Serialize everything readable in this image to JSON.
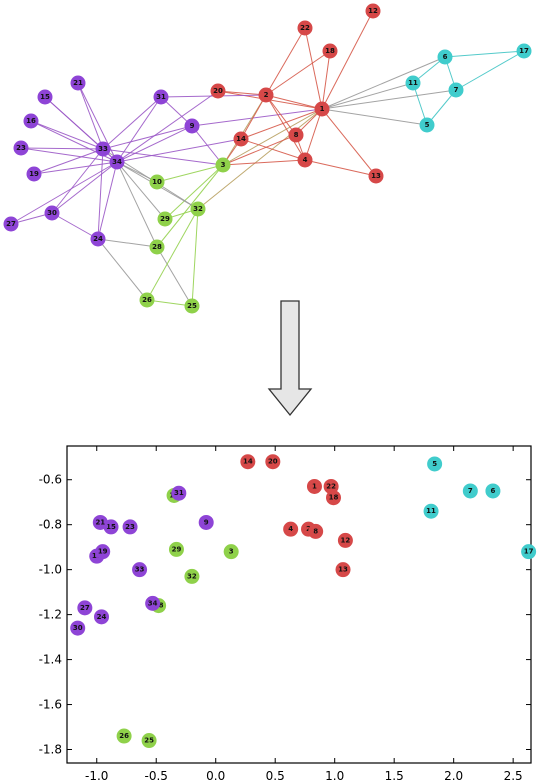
{
  "colors": {
    "purple": "#8e44d6",
    "red": "#d64848",
    "cyan": "#40cccc",
    "green": "#8fd14a",
    "gray_edge": "#999999",
    "purple_edge": "#9b59c6",
    "red_edge": "#d65a4a",
    "cyan_edge": "#40c4c4",
    "green_edge": "#95d150",
    "olive_edge": "#b8a060"
  },
  "graph": {
    "nodes": [
      {
        "id": "1",
        "community": "red"
      },
      {
        "id": "2",
        "community": "red"
      },
      {
        "id": "3",
        "community": "green"
      },
      {
        "id": "4",
        "community": "red"
      },
      {
        "id": "5",
        "community": "cyan"
      },
      {
        "id": "6",
        "community": "cyan"
      },
      {
        "id": "7",
        "community": "cyan"
      },
      {
        "id": "8",
        "community": "red"
      },
      {
        "id": "9",
        "community": "purple"
      },
      {
        "id": "10",
        "community": "green"
      },
      {
        "id": "11",
        "community": "cyan"
      },
      {
        "id": "12",
        "community": "red"
      },
      {
        "id": "13",
        "community": "red"
      },
      {
        "id": "14",
        "community": "red"
      },
      {
        "id": "15",
        "community": "purple"
      },
      {
        "id": "16",
        "community": "purple"
      },
      {
        "id": "17",
        "community": "cyan"
      },
      {
        "id": "18",
        "community": "red"
      },
      {
        "id": "19",
        "community": "purple"
      },
      {
        "id": "20",
        "community": "red"
      },
      {
        "id": "21",
        "community": "purple"
      },
      {
        "id": "22",
        "community": "red"
      },
      {
        "id": "23",
        "community": "purple"
      },
      {
        "id": "24",
        "community": "purple"
      },
      {
        "id": "25",
        "community": "green"
      },
      {
        "id": "26",
        "community": "green"
      },
      {
        "id": "27",
        "community": "purple"
      },
      {
        "id": "28",
        "community": "green"
      },
      {
        "id": "29",
        "community": "green"
      },
      {
        "id": "30",
        "community": "purple"
      },
      {
        "id": "31",
        "community": "purple"
      },
      {
        "id": "32",
        "community": "green"
      },
      {
        "id": "33",
        "community": "purple"
      },
      {
        "id": "34",
        "community": "purple"
      }
    ],
    "edges": [
      [
        "1",
        "2",
        "red"
      ],
      [
        "1",
        "3",
        "olive"
      ],
      [
        "1",
        "4",
        "red"
      ],
      [
        "1",
        "5",
        "gray"
      ],
      [
        "1",
        "6",
        "gray"
      ],
      [
        "1",
        "7",
        "gray"
      ],
      [
        "1",
        "8",
        "red"
      ],
      [
        "1",
        "9",
        "purple"
      ],
      [
        "1",
        "11",
        "gray"
      ],
      [
        "1",
        "12",
        "red"
      ],
      [
        "1",
        "13",
        "red"
      ],
      [
        "1",
        "14",
        "red"
      ],
      [
        "1",
        "18",
        "red"
      ],
      [
        "1",
        "20",
        "red"
      ],
      [
        "1",
        "22",
        "red"
      ],
      [
        "1",
        "32",
        "olive"
      ],
      [
        "2",
        "3",
        "olive"
      ],
      [
        "2",
        "4",
        "red"
      ],
      [
        "2",
        "8",
        "red"
      ],
      [
        "2",
        "14",
        "red"
      ],
      [
        "2",
        "18",
        "red"
      ],
      [
        "2",
        "20",
        "red"
      ],
      [
        "2",
        "22",
        "red"
      ],
      [
        "2",
        "31",
        "purple"
      ],
      [
        "3",
        "4",
        "red"
      ],
      [
        "3",
        "8",
        "red"
      ],
      [
        "3",
        "9",
        "purple"
      ],
      [
        "3",
        "10",
        "green"
      ],
      [
        "3",
        "14",
        "red"
      ],
      [
        "3",
        "28",
        "green"
      ],
      [
        "3",
        "29",
        "green"
      ],
      [
        "3",
        "33",
        "purple"
      ],
      [
        "4",
        "8",
        "red"
      ],
      [
        "4",
        "13",
        "red"
      ],
      [
        "4",
        "14",
        "red"
      ],
      [
        "5",
        "7",
        "cyan"
      ],
      [
        "5",
        "11",
        "cyan"
      ],
      [
        "6",
        "7",
        "cyan"
      ],
      [
        "6",
        "11",
        "cyan"
      ],
      [
        "6",
        "17",
        "cyan"
      ],
      [
        "7",
        "17",
        "cyan"
      ],
      [
        "9",
        "31",
        "purple"
      ],
      [
        "9",
        "33",
        "purple"
      ],
      [
        "9",
        "34",
        "purple"
      ],
      [
        "10",
        "34",
        "gray"
      ],
      [
        "14",
        "34",
        "purple"
      ],
      [
        "15",
        "33",
        "purple"
      ],
      [
        "15",
        "34",
        "purple"
      ],
      [
        "16",
        "33",
        "purple"
      ],
      [
        "16",
        "34",
        "purple"
      ],
      [
        "19",
        "33",
        "purple"
      ],
      [
        "19",
        "34",
        "purple"
      ],
      [
        "20",
        "34",
        "purple"
      ],
      [
        "21",
        "33",
        "purple"
      ],
      [
        "21",
        "34",
        "purple"
      ],
      [
        "23",
        "33",
        "purple"
      ],
      [
        "23",
        "34",
        "purple"
      ],
      [
        "24",
        "26",
        "gray"
      ],
      [
        "24",
        "28",
        "gray"
      ],
      [
        "24",
        "30",
        "purple"
      ],
      [
        "24",
        "33",
        "purple"
      ],
      [
        "24",
        "34",
        "purple"
      ],
      [
        "25",
        "26",
        "green"
      ],
      [
        "25",
        "28",
        "gray"
      ],
      [
        "25",
        "32",
        "green"
      ],
      [
        "26",
        "32",
        "green"
      ],
      [
        "27",
        "30",
        "purple"
      ],
      [
        "27",
        "34",
        "purple"
      ],
      [
        "28",
        "34",
        "gray"
      ],
      [
        "29",
        "32",
        "green"
      ],
      [
        "29",
        "34",
        "gray"
      ],
      [
        "30",
        "33",
        "purple"
      ],
      [
        "30",
        "34",
        "purple"
      ],
      [
        "31",
        "33",
        "purple"
      ],
      [
        "31",
        "34",
        "purple"
      ],
      [
        "32",
        "33",
        "gray"
      ],
      [
        "32",
        "34",
        "gray"
      ],
      [
        "33",
        "34",
        "purple"
      ]
    ]
  },
  "arrow": {
    "direction": "down"
  },
  "chart_data": {
    "type": "scatter",
    "title": "",
    "xlabel": "",
    "ylabel": "",
    "xlim": [
      -1.25,
      2.65
    ],
    "ylim": [
      -1.86,
      -0.45
    ],
    "xticks": [
      "-1.0",
      "-0.5",
      "0.0",
      "0.5",
      "1.0",
      "1.5",
      "2.0",
      "2.5"
    ],
    "xtick_values": [
      -1.0,
      -0.5,
      0.0,
      0.5,
      1.0,
      1.5,
      2.0,
      2.5
    ],
    "yticks": [
      "-0.6",
      "-0.8",
      "-1.0",
      "-1.2",
      "-1.4",
      "-1.6",
      "-1.8"
    ],
    "ytick_values": [
      -0.6,
      -0.8,
      -1.0,
      -1.2,
      -1.4,
      -1.6,
      -1.8
    ],
    "points": [
      {
        "label": "1",
        "x": 0.83,
        "y": -0.63,
        "community": "red"
      },
      {
        "label": "2",
        "x": 0.78,
        "y": -0.82,
        "community": "red"
      },
      {
        "label": "3",
        "x": 0.13,
        "y": -0.92,
        "community": "green"
      },
      {
        "label": "4",
        "x": 0.63,
        "y": -0.82,
        "community": "red"
      },
      {
        "label": "5",
        "x": 1.84,
        "y": -0.53,
        "community": "cyan"
      },
      {
        "label": "6",
        "x": 2.33,
        "y": -0.65,
        "community": "cyan"
      },
      {
        "label": "7",
        "x": 2.14,
        "y": -0.65,
        "community": "cyan"
      },
      {
        "label": "8",
        "x": 0.84,
        "y": -0.83,
        "community": "red"
      },
      {
        "label": "9",
        "x": -0.08,
        "y": -0.79,
        "community": "purple"
      },
      {
        "label": "10",
        "x": -0.35,
        "y": -0.67,
        "community": "green"
      },
      {
        "label": "11",
        "x": 1.81,
        "y": -0.74,
        "community": "cyan"
      },
      {
        "label": "12",
        "x": 1.09,
        "y": -0.87,
        "community": "red"
      },
      {
        "label": "13",
        "x": 1.07,
        "y": -1.0,
        "community": "red"
      },
      {
        "label": "14",
        "x": 0.27,
        "y": -0.52,
        "community": "red"
      },
      {
        "label": "15",
        "x": -0.88,
        "y": -0.81,
        "community": "purple"
      },
      {
        "label": "16",
        "x": -1.0,
        "y": -0.94,
        "community": "purple"
      },
      {
        "label": "17",
        "x": 2.63,
        "y": -0.92,
        "community": "cyan"
      },
      {
        "label": "18",
        "x": 0.99,
        "y": -0.68,
        "community": "red"
      },
      {
        "label": "19",
        "x": -0.95,
        "y": -0.92,
        "community": "purple"
      },
      {
        "label": "20",
        "x": 0.48,
        "y": -0.52,
        "community": "red"
      },
      {
        "label": "21",
        "x": -0.97,
        "y": -0.79,
        "community": "purple"
      },
      {
        "label": "22",
        "x": 0.97,
        "y": -0.63,
        "community": "red"
      },
      {
        "label": "23",
        "x": -0.72,
        "y": -0.81,
        "community": "purple"
      },
      {
        "label": "24",
        "x": -0.96,
        "y": -1.21,
        "community": "purple"
      },
      {
        "label": "25",
        "x": -0.56,
        "y": -1.76,
        "community": "green"
      },
      {
        "label": "26",
        "x": -0.77,
        "y": -1.74,
        "community": "green"
      },
      {
        "label": "27",
        "x": -1.1,
        "y": -1.17,
        "community": "purple"
      },
      {
        "label": "28",
        "x": -0.48,
        "y": -1.16,
        "community": "green"
      },
      {
        "label": "29",
        "x": -0.33,
        "y": -0.91,
        "community": "green"
      },
      {
        "label": "30",
        "x": -1.16,
        "y": -1.26,
        "community": "purple"
      },
      {
        "label": "31",
        "x": -0.31,
        "y": -0.66,
        "community": "purple"
      },
      {
        "label": "32",
        "x": -0.2,
        "y": -1.03,
        "community": "green"
      },
      {
        "label": "33",
        "x": -0.64,
        "y": -1.0,
        "community": "purple"
      },
      {
        "label": "34",
        "x": -0.53,
        "y": -1.15,
        "community": "purple"
      }
    ]
  }
}
